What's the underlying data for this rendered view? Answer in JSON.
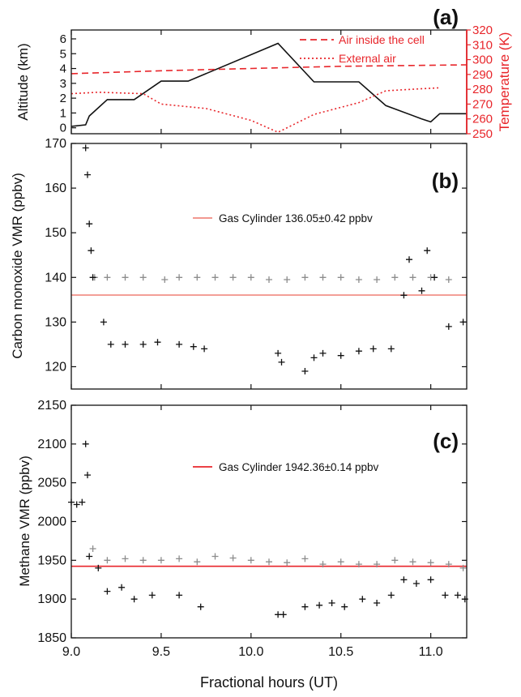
{
  "colors": {
    "red": "#e8262b",
    "lightred": "#f08a80",
    "black": "#111111",
    "gray": "#8c8c8c"
  },
  "chart_data": [
    {
      "type": "line",
      "panel_label": "(a)",
      "x_range": [
        9.0,
        11.2
      ],
      "xticks": [
        9.0,
        9.5,
        10.0,
        10.5,
        11.0
      ],
      "xticklabels": [
        "",
        "",
        "",
        "",
        ""
      ],
      "ylabel": "Altitude (km)",
      "ylim": [
        -0.4,
        6.6
      ],
      "yticks": [
        0,
        1,
        2,
        3,
        4,
        5,
        6
      ],
      "y2label": "Temperature (K)",
      "y2lim": [
        250,
        320
      ],
      "y2ticks": [
        250,
        260,
        270,
        280,
        290,
        300,
        310,
        320
      ],
      "legend_position": "top-right",
      "series": [
        {
          "name": "",
          "axis": "left",
          "style": "solid",
          "color": "black",
          "x": [
            9.0,
            9.08,
            9.1,
            9.2,
            9.35,
            9.5,
            9.65,
            10.15,
            10.35,
            10.6,
            10.75,
            10.95,
            11.0,
            11.05,
            11.2
          ],
          "y": [
            0.1,
            0.2,
            0.8,
            1.9,
            1.9,
            3.15,
            3.15,
            5.7,
            3.1,
            3.1,
            1.5,
            0.6,
            0.4,
            0.95,
            0.95
          ]
        },
        {
          "name": "Air inside the cell",
          "axis": "right",
          "style": "dashed",
          "color": "red",
          "x": [
            9.0,
            9.5,
            10.0,
            10.5,
            11.2
          ],
          "y": [
            290.5,
            292.5,
            294.0,
            295.5,
            296.5
          ]
        },
        {
          "name": "External air",
          "axis": "right",
          "style": "dotted",
          "color": "red",
          "x": [
            9.0,
            9.15,
            9.4,
            9.5,
            9.75,
            10.0,
            10.15,
            10.35,
            10.6,
            10.75,
            10.9,
            11.05
          ],
          "y": [
            277,
            278,
            277,
            270,
            267,
            259,
            251,
            263,
            271,
            279,
            280,
            281
          ]
        }
      ]
    },
    {
      "type": "scatter",
      "panel_label": "(b)",
      "x_range": [
        9.0,
        11.2
      ],
      "xticks": [
        9.0,
        9.5,
        10.0,
        10.5,
        11.0
      ],
      "xticklabels": [
        "",
        "",
        "",
        "",
        ""
      ],
      "ylabel": "Carbon monoxide VMR (ppbv)",
      "ylim": [
        115,
        170
      ],
      "yticks": [
        120,
        130,
        140,
        150,
        160,
        170
      ],
      "reference_line": {
        "label": "Gas Cylinder 136.05±0.42 ppbv",
        "y": 136.05,
        "color": "lightred"
      },
      "series": [
        {
          "name": "",
          "color": "gray",
          "marker": "+",
          "x": [
            9.13,
            9.2,
            9.3,
            9.4,
            9.52,
            9.6,
            9.7,
            9.8,
            9.9,
            10.0,
            10.1,
            10.2,
            10.3,
            10.4,
            10.5,
            10.6,
            10.7,
            10.8,
            10.9,
            11.0,
            11.1
          ],
          "y": [
            140,
            140,
            140,
            140,
            139.5,
            140,
            140,
            140,
            140,
            140,
            139.5,
            139.5,
            140,
            140,
            140,
            139.5,
            139.5,
            140,
            140,
            140,
            139.5
          ]
        },
        {
          "name": "",
          "color": "black",
          "marker": "+",
          "x": [
            9.08,
            9.09,
            9.1,
            9.11,
            9.12,
            9.18,
            9.22,
            9.3,
            9.4,
            9.48,
            9.6,
            9.68,
            9.74,
            10.15,
            10.17,
            10.3,
            10.35,
            10.4,
            10.5,
            10.6,
            10.68,
            10.78,
            10.85,
            10.88,
            10.95,
            10.98,
            11.02,
            11.1,
            11.18
          ],
          "y": [
            169,
            163,
            152,
            146,
            140,
            130,
            125,
            125,
            125,
            125.5,
            125,
            124.5,
            124,
            123,
            121,
            119,
            122,
            123,
            122.5,
            123.5,
            124,
            124,
            136,
            144,
            137,
            146,
            140,
            129,
            130
          ]
        }
      ]
    },
    {
      "type": "scatter",
      "panel_label": "(c)",
      "x_range": [
        9.0,
        11.2
      ],
      "xticks": [
        9.0,
        9.5,
        10.0,
        10.5,
        11.0
      ],
      "xticklabels": [
        "9.0",
        "9.5",
        "10.0",
        "10.5",
        "11.0"
      ],
      "xlabel": "Fractional hours (UT)",
      "ylabel": "Methane VMR (ppbv)",
      "ylim": [
        1850,
        2150
      ],
      "yticks": [
        1850,
        1900,
        1950,
        2000,
        2050,
        2100,
        2150
      ],
      "reference_line": {
        "label": "Gas Cylinder 1942.36±0.14 ppbv",
        "y": 1942.36,
        "color": "red"
      },
      "series": [
        {
          "name": "",
          "color": "gray",
          "marker": "+",
          "x": [
            9.12,
            9.2,
            9.3,
            9.4,
            9.5,
            9.6,
            9.7,
            9.8,
            9.9,
            10.0,
            10.1,
            10.2,
            10.3,
            10.4,
            10.5,
            10.6,
            10.7,
            10.8,
            10.9,
            11.0,
            11.1,
            11.18
          ],
          "y": [
            1965,
            1950,
            1952,
            1950,
            1950,
            1952,
            1948,
            1955,
            1953,
            1950,
            1948,
            1947,
            1952,
            1945,
            1948,
            1945,
            1945,
            1950,
            1948,
            1947,
            1945,
            1940
          ]
        },
        {
          "name": "",
          "color": "black",
          "marker": "+",
          "x": [
            9.0,
            9.03,
            9.06,
            9.08,
            9.09,
            9.1,
            9.15,
            9.2,
            9.28,
            9.35,
            9.45,
            9.6,
            9.72,
            10.15,
            10.18,
            10.3,
            10.38,
            10.45,
            10.52,
            10.62,
            10.7,
            10.78,
            10.85,
            10.92,
            11.0,
            11.08,
            11.15,
            11.19
          ],
          "y": [
            2025,
            2022,
            2025,
            2100,
            2060,
            1955,
            1940,
            1910,
            1915,
            1900,
            1905,
            1905,
            1890,
            1880,
            1880,
            1890,
            1892,
            1895,
            1890,
            1900,
            1895,
            1905,
            1925,
            1920,
            1925,
            1905,
            1905,
            1900
          ]
        }
      ]
    }
  ]
}
